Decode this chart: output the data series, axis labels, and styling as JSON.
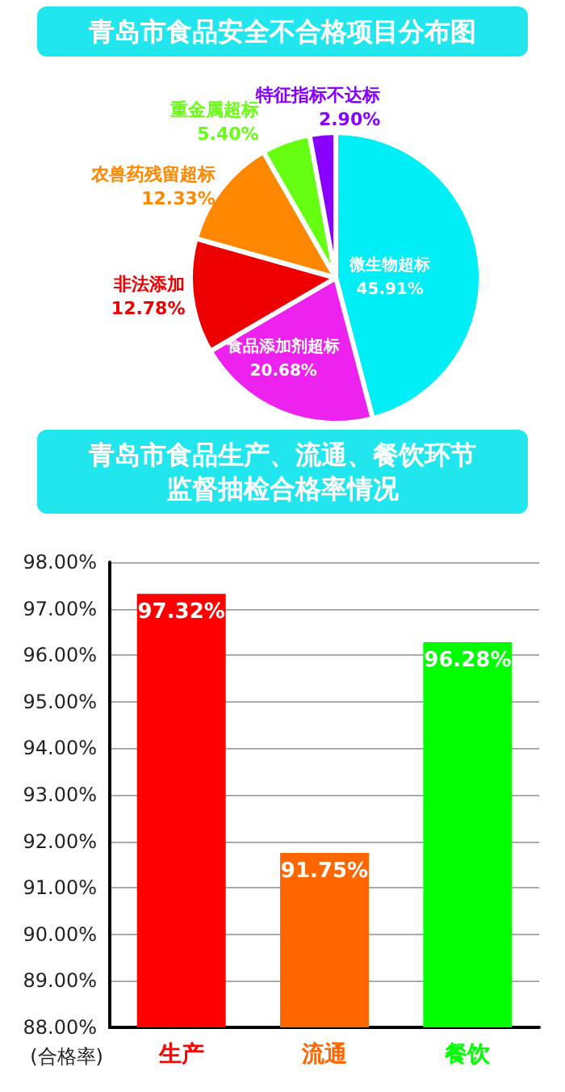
{
  "chart_data": [
    {
      "type": "pie",
      "title": "青岛市食品安全不合格项目分布图",
      "categories": [
        "微生物超标",
        "食品添加剂超标",
        "非法添加",
        "农兽药残留超标",
        "重金属超标",
        "特征指标不达标"
      ],
      "values": [
        45.91,
        20.68,
        12.78,
        12.33,
        5.4,
        2.9
      ],
      "value_labels": [
        "45.91%",
        "20.68%",
        "12.78%",
        "12.33%",
        "5.40%",
        "2.90%"
      ],
      "colors": [
        "#00eef5",
        "#ee22ee",
        "#ee0000",
        "#ff8800",
        "#66ff11",
        "#8800ff"
      ]
    },
    {
      "type": "bar",
      "title": "青岛市食品生产、流通、餐饮环节监督抽检合格率情况",
      "ylabel": "(合格率)",
      "categories": [
        "生产",
        "流通",
        "餐饮"
      ],
      "values": [
        97.32,
        91.75,
        96.28
      ],
      "value_labels": [
        "97.32%",
        "91.75%",
        "96.28%"
      ],
      "colors": [
        "#ff0000",
        "#ff6600",
        "#00ff00"
      ],
      "ylim": [
        88,
        98
      ],
      "yticks": [
        {
          "value": 88,
          "label": "88.00%"
        },
        {
          "value": 89,
          "label": "89.00%"
        },
        {
          "value": 90,
          "label": "90.00%"
        },
        {
          "value": 91,
          "label": "91.00%"
        },
        {
          "value": 92,
          "label": "92.00%"
        },
        {
          "value": 93,
          "label": "93.00%"
        },
        {
          "value": 94,
          "label": "94.00%"
        },
        {
          "value": 95,
          "label": "95.00%"
        },
        {
          "value": 96,
          "label": "96.00%"
        },
        {
          "value": 97,
          "label": "97.00%"
        },
        {
          "value": 98,
          "label": "98.00%"
        }
      ],
      "grid": "y"
    }
  ]
}
